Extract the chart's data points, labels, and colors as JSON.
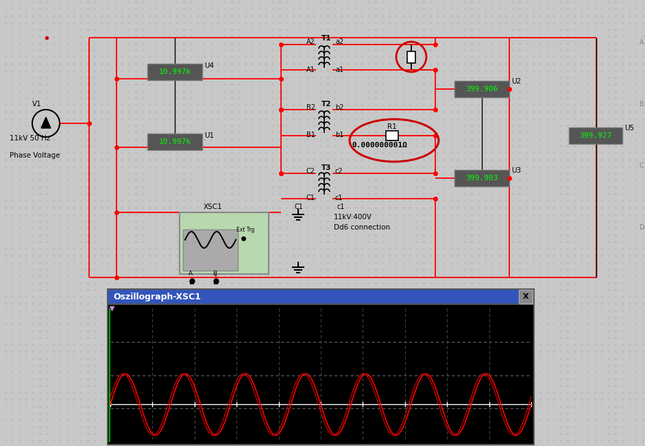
{
  "bg_color": "#c8c8c8",
  "red_wire": "#ff0000",
  "black_wire": "#000000",
  "voltages": {
    "U4": "10.997k",
    "U1": "10.997k",
    "U2": "399.906",
    "U5": "399.927",
    "U3": "399.903"
  },
  "R1_value": "0.000000001Ω",
  "osc_title": "Oszillograph-XSC1",
  "osc_title_bar_color": "#3355bb",
  "source_line1": "11kV 50 Hz",
  "source_line2": "Phase Voltage",
  "transformer_line1": "11kV:400V",
  "transformer_line2": "Dd6 connection"
}
